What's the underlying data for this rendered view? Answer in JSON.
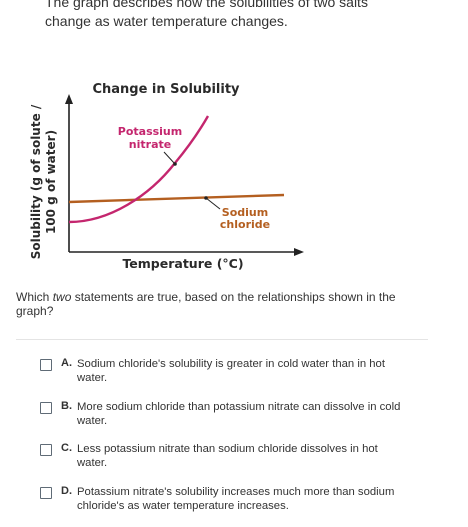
{
  "intro": {
    "line1": "The graph describes how the solubilities of two salts",
    "line2": "change as water temperature changes."
  },
  "figure": {
    "title": "Change in Solubility",
    "ylabel_line1": "Solubility (g of solute /",
    "ylabel_line2": "100 g of water)",
    "xlabel": "Temperature (°C)",
    "series": [
      {
        "name_line1": "Potassium",
        "name_line2": "nitrate",
        "color": "#c4266e"
      },
      {
        "name_line1": "Sodium",
        "name_line2": "chloride",
        "color": "#b45f20"
      }
    ]
  },
  "chart_data": {
    "type": "line",
    "title": "Change in Solubility",
    "xlabel": "Temperature (°C)",
    "ylabel": "Solubility (g of solute / 100 g of water)",
    "series": [
      {
        "name": "Potassium nitrate",
        "trend": "increasing steeply (concave up)"
      },
      {
        "name": "Sodium chloride",
        "trend": "nearly flat, slight increase"
      }
    ]
  },
  "question": {
    "pre": "Which ",
    "emph": "two",
    "post": " statements are true, based on the relationships shown in the graph?"
  },
  "choices": [
    {
      "letter": "A.",
      "line1": "Sodium chloride's solubility is greater in cold water than in hot",
      "line2": "water."
    },
    {
      "letter": "B.",
      "line1": "More sodium chloride than potassium nitrate can dissolve in cold",
      "line2": "water."
    },
    {
      "letter": "C.",
      "line1": "Less potassium nitrate than sodium chloride dissolves in hot",
      "line2": "water."
    },
    {
      "letter": "D.",
      "line1": "Potassium nitrate's solubility increases much more than sodium",
      "line2": "chloride's as water temperature increases."
    }
  ]
}
